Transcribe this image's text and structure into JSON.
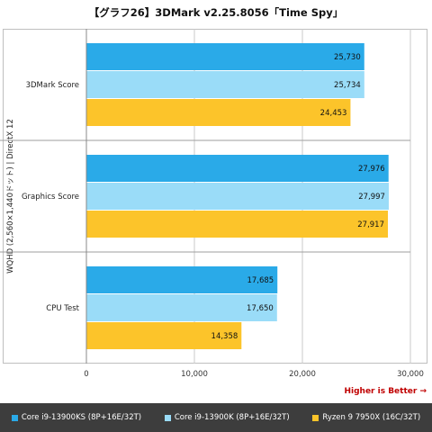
{
  "title": "【グラフ26】3DMark v2.25.8056「Time Spy」",
  "higher_note": "Higher is Better →",
  "legend": [
    {
      "label": "Core i9-13900KS (8P+16E/32T)",
      "color": "#2aaae8"
    },
    {
      "label": "Core i9-13900K (8P+16E/32T)",
      "color": "#9adcf8"
    },
    {
      "label": "Ryzen 9 7950X (16C/32T)",
      "color": "#fcc42a"
    }
  ],
  "chart_data": {
    "type": "bar",
    "orientation": "horizontal",
    "title": "【グラフ26】3DMark v2.25.8056「Time Spy」",
    "ylabel": "WQHD (2,560×1,440ドット) | DirectX 12",
    "xlabel": "",
    "categories": [
      "3DMark Score",
      "Graphics Score",
      "CPU Test"
    ],
    "series": [
      {
        "name": "Core i9-13900KS (8P+16E/32T)",
        "color": "#2aaae8",
        "values": [
          25730,
          27976,
          17685
        ],
        "labels": [
          "25,730",
          "27,976",
          "17,685"
        ]
      },
      {
        "name": "Core i9-13900K (8P+16E/32T)",
        "color": "#9adcf8",
        "values": [
          25734,
          27997,
          17650
        ],
        "labels": [
          "25,734",
          "27,997",
          "17,650"
        ]
      },
      {
        "name": "Ryzen 9 7950X (16C/32T)",
        "color": "#fcc42a",
        "values": [
          24453,
          27917,
          14358
        ],
        "labels": [
          "24,453",
          "27,917",
          "14,358"
        ]
      }
    ],
    "xlim": [
      0,
      30000
    ],
    "xticks": [
      0,
      10000,
      20000,
      30000
    ],
    "xtick_labels": [
      "0",
      "10,000",
      "20,000",
      "30,000"
    ],
    "grid": true,
    "legend_position": "bottom"
  }
}
